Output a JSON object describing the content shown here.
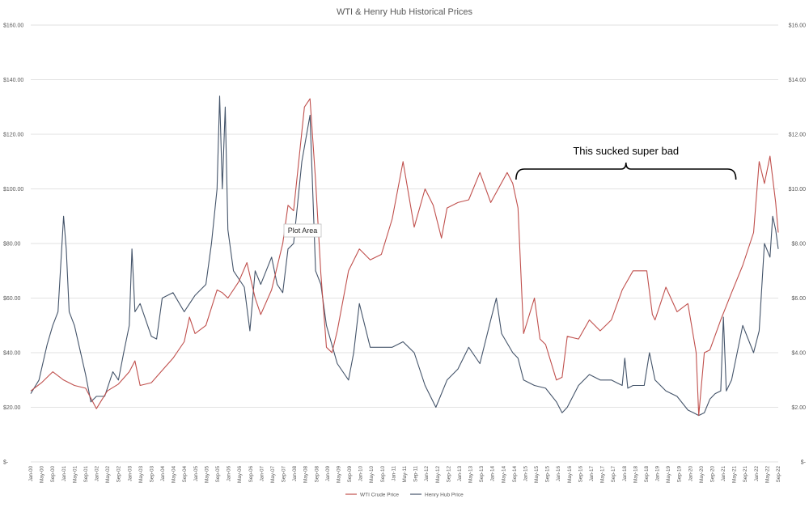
{
  "chart_data": {
    "type": "line",
    "title": "WTI & Henry Hub Historical Prices",
    "xlabel": "",
    "ylabel": "",
    "x_tick_labels": [
      "Jan-00",
      "May-00",
      "Sep-00",
      "Jan-01",
      "May-01",
      "Sep-01",
      "Jan-02",
      "May-02",
      "Sep-02",
      "Jan-03",
      "May-03",
      "Sep-03",
      "Jan-04",
      "May-04",
      "Sep-04",
      "Jan-05",
      "May-05",
      "Sep-05",
      "Jan-06",
      "May-06",
      "Sep-06",
      "Jan-07",
      "May-07",
      "Sep-07",
      "Jan-08",
      "May-08",
      "Sep-08",
      "Jan-09",
      "May-09",
      "Sep-09",
      "Jan-10",
      "May-10",
      "Sep-10",
      "Jan-11",
      "May-11",
      "Sep-11",
      "Jan-12",
      "May-12",
      "Sep-12",
      "Jan-13",
      "May-13",
      "Sep-13",
      "Jan-14",
      "May-14",
      "Sep-14",
      "Jan-15",
      "May-15",
      "Sep-15",
      "Jan-16",
      "May-16",
      "Sep-16",
      "Jan-17",
      "May-17",
      "Sep-17",
      "Jan-18",
      "May-18",
      "Sep-18",
      "Jan-19",
      "May-19",
      "Sep-19",
      "Jan-20",
      "May-20",
      "Sep-20",
      "Jan-21",
      "May-21",
      "Sep-21",
      "Jan-22",
      "May-22",
      "Sep-22"
    ],
    "y_left": {
      "min": 0,
      "max": 160,
      "ticks": [
        "$-",
        "$20.00",
        "$40.00",
        "$60.00",
        "$80.00",
        "$100.00",
        "$120.00",
        "$140.00",
        "$160.00"
      ]
    },
    "y_right": {
      "min": 0,
      "max": 16,
      "ticks": [
        "$-",
        "$2.00",
        "$4.00",
        "$6.00",
        "$8.00",
        "$10.00",
        "$12.00",
        "$14.00",
        "$16.00"
      ]
    },
    "grid": true,
    "legend_position": "bottom",
    "series": [
      {
        "name": "WTI Crude Price",
        "axis": "left",
        "color": "#c0504d",
        "x": [
          2000.0,
          2000.33,
          2000.67,
          2001.0,
          2001.33,
          2001.67,
          2002.0,
          2002.33,
          2002.67,
          2003.0,
          2003.17,
          2003.33,
          2003.67,
          2004.0,
          2004.33,
          2004.67,
          2004.83,
          2005.0,
          2005.33,
          2005.67,
          2005.83,
          2006.0,
          2006.33,
          2006.58,
          2006.83,
          2007.0,
          2007.33,
          2007.67,
          2007.83,
          2008.0,
          2008.33,
          2008.5,
          2008.67,
          2008.83,
          2009.0,
          2009.17,
          2009.33,
          2009.67,
          2010.0,
          2010.33,
          2010.67,
          2011.0,
          2011.33,
          2011.67,
          2012.0,
          2012.25,
          2012.5,
          2012.67,
          2013.0,
          2013.33,
          2013.67,
          2014.0,
          2014.5,
          2014.67,
          2014.83,
          2015.0,
          2015.33,
          2015.5,
          2015.67,
          2016.0,
          2016.17,
          2016.33,
          2016.67,
          2017.0,
          2017.33,
          2017.67,
          2018.0,
          2018.33,
          2018.75,
          2018.92,
          2019.0,
          2019.33,
          2019.67,
          2020.0,
          2020.25,
          2020.33,
          2020.5,
          2020.67,
          2021.0,
          2021.33,
          2021.67,
          2022.0,
          2022.17,
          2022.33,
          2022.5,
          2022.67,
          2022.75
        ],
        "values": [
          26,
          29,
          33,
          30,
          28,
          27,
          19.5,
          26,
          28.5,
          33,
          37,
          28,
          29,
          33.5,
          38,
          44,
          53,
          47,
          50,
          63,
          62,
          60,
          66,
          73,
          60,
          54,
          63,
          80,
          94,
          92,
          130,
          133,
          103,
          69,
          42,
          40,
          48,
          70,
          78,
          74,
          76,
          89,
          110,
          86,
          100,
          94,
          82,
          93,
          95,
          96,
          106,
          95,
          106,
          102,
          93,
          47,
          60,
          45,
          43,
          30,
          31,
          46,
          45,
          52,
          48,
          52,
          63,
          70,
          70,
          54,
          52,
          64,
          55,
          58,
          40,
          17,
          40,
          41,
          52,
          62,
          72,
          84,
          110,
          102,
          112,
          95,
          84
        ],
        "data_marker": "line"
      },
      {
        "name": "Henry Hub Price",
        "axis": "right",
        "color": "#44546a",
        "x": [
          2000.0,
          2000.25,
          2000.5,
          2000.67,
          2000.83,
          2001.0,
          2001.08,
          2001.17,
          2001.33,
          2001.67,
          2001.83,
          2002.0,
          2002.25,
          2002.5,
          2002.67,
          2002.83,
          2003.0,
          2003.08,
          2003.17,
          2003.33,
          2003.67,
          2003.83,
          2004.0,
          2004.33,
          2004.67,
          2005.0,
          2005.33,
          2005.5,
          2005.67,
          2005.75,
          2005.83,
          2005.92,
          2006.0,
          2006.17,
          2006.5,
          2006.67,
          2006.83,
          2007.0,
          2007.33,
          2007.5,
          2007.67,
          2007.83,
          2008.0,
          2008.25,
          2008.5,
          2008.67,
          2008.83,
          2009.0,
          2009.33,
          2009.67,
          2009.83,
          2010.0,
          2010.33,
          2010.67,
          2011.0,
          2011.33,
          2011.67,
          2012.0,
          2012.33,
          2012.67,
          2013.0,
          2013.33,
          2013.67,
          2014.0,
          2014.17,
          2014.33,
          2014.67,
          2014.83,
          2015.0,
          2015.33,
          2015.67,
          2016.0,
          2016.17,
          2016.33,
          2016.67,
          2017.0,
          2017.33,
          2017.67,
          2018.0,
          2018.08,
          2018.17,
          2018.33,
          2018.67,
          2018.83,
          2019.0,
          2019.33,
          2019.67,
          2020.0,
          2020.17,
          2020.33,
          2020.5,
          2020.67,
          2020.83,
          2021.0,
          2021.08,
          2021.17,
          2021.33,
          2021.67,
          2022.0,
          2022.17,
          2022.33,
          2022.5,
          2022.58,
          2022.67,
          2022.75
        ],
        "values": [
          2.5,
          3.0,
          4.3,
          5.0,
          5.5,
          9.0,
          7.8,
          5.5,
          5.0,
          3.2,
          2.2,
          2.4,
          2.4,
          3.3,
          3.0,
          4.0,
          5.0,
          7.8,
          5.5,
          5.8,
          4.6,
          4.5,
          6.0,
          6.2,
          5.5,
          6.1,
          6.5,
          8.0,
          10.0,
          13.4,
          10.0,
          13.0,
          8.5,
          7.0,
          6.4,
          4.8,
          7.0,
          6.5,
          7.5,
          6.5,
          6.2,
          7.8,
          8.0,
          11.0,
          12.7,
          7.0,
          6.5,
          5.0,
          3.6,
          3.0,
          4.0,
          5.8,
          4.2,
          4.2,
          4.2,
          4.4,
          4.0,
          2.8,
          2.0,
          3.0,
          3.4,
          4.2,
          3.6,
          5.2,
          6.0,
          4.7,
          4.0,
          3.8,
          3.0,
          2.8,
          2.7,
          2.2,
          1.8,
          2.0,
          2.8,
          3.2,
          3.0,
          3.0,
          2.8,
          3.8,
          2.7,
          2.8,
          2.8,
          4.0,
          3.0,
          2.6,
          2.4,
          1.9,
          1.8,
          1.7,
          1.8,
          2.3,
          2.5,
          2.6,
          5.3,
          2.6,
          3.0,
          5.0,
          4.0,
          4.8,
          8.0,
          7.5,
          9.0,
          8.5,
          7.8
        ],
        "data_marker": "line"
      }
    ],
    "annotations": [
      {
        "text": "This sucked super bad",
        "bracket_from": "Sep-14",
        "bracket_to": "May-21"
      }
    ],
    "tooltip": "Plot Area"
  }
}
